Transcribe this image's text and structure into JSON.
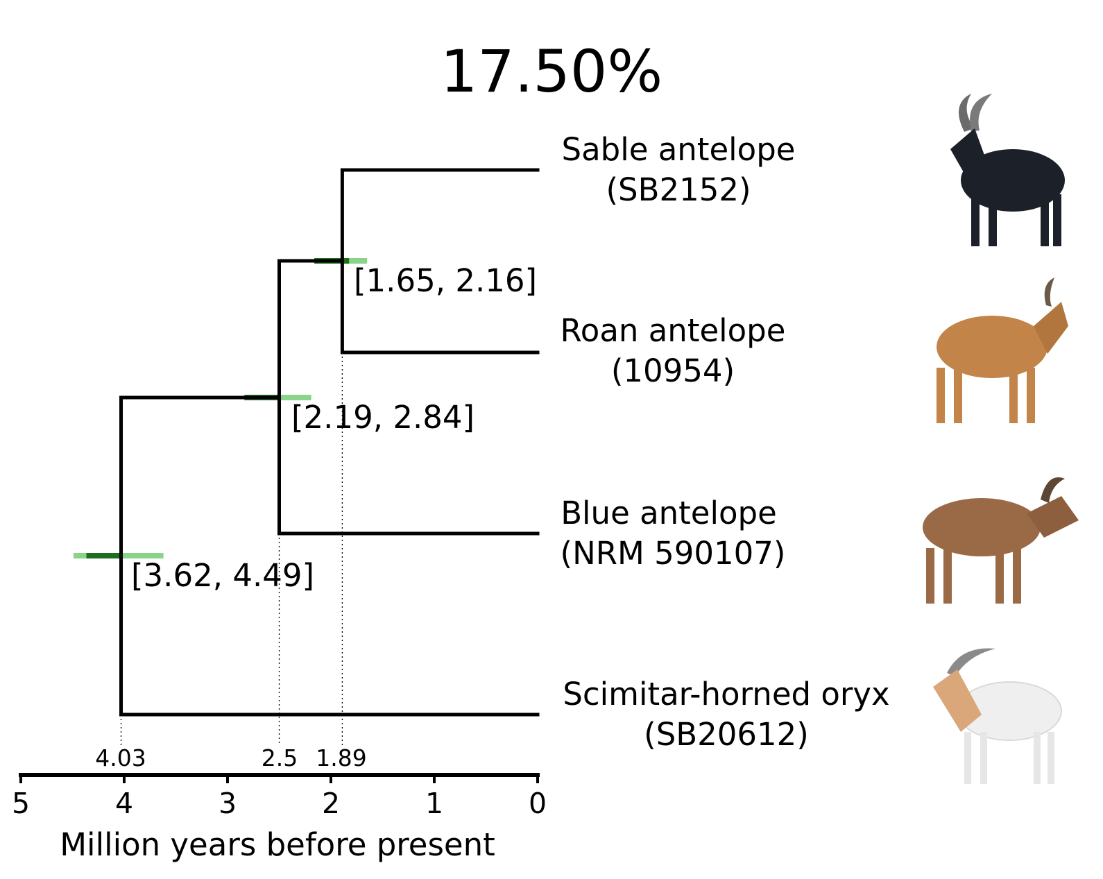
{
  "title": "17.50%",
  "axis": {
    "label": "Million years before present",
    "ticks": [
      5,
      4,
      3,
      2,
      1,
      0
    ],
    "range": [
      5,
      0
    ]
  },
  "taxa": [
    {
      "name": "Sable antelope",
      "id": "(SB2152)",
      "icon": "sable-antelope-icon",
      "color": "#1c2129"
    },
    {
      "name": "Roan antelope",
      "id": "(10954)",
      "icon": "roan-antelope-icon",
      "color": "#c28448"
    },
    {
      "name": "Blue antelope",
      "id": "(NRM 590107)",
      "icon": "blue-antelope-icon",
      "color": "#9a6a47"
    },
    {
      "name": "Scimitar-horned oryx",
      "id": "(SB20612)",
      "icon": "scimitar-horned-oryx-icon",
      "color": "#efefef"
    }
  ],
  "nodes": [
    {
      "age": 1.89,
      "age_label": "1.89",
      "ci": [
        1.65,
        2.16
      ],
      "ci_label": "[1.65, 2.16]",
      "children": [
        "Sable antelope",
        "Roan antelope"
      ]
    },
    {
      "age": 2.5,
      "age_label": "2.5",
      "ci": [
        2.19,
        2.84
      ],
      "ci_label": "[2.19, 2.84]",
      "children": [
        "node-1.89",
        "Blue antelope"
      ]
    },
    {
      "age": 4.03,
      "age_label": "4.03",
      "ci": [
        3.62,
        4.49
      ],
      "ci_label": "[3.62, 4.49]",
      "children": [
        "node-2.5",
        "Scimitar-horned oryx"
      ]
    }
  ],
  "colors": {
    "branch": "#000000",
    "ci_bar": "#7ccf7c",
    "ci_bar_center": "#1f6e1f"
  }
}
